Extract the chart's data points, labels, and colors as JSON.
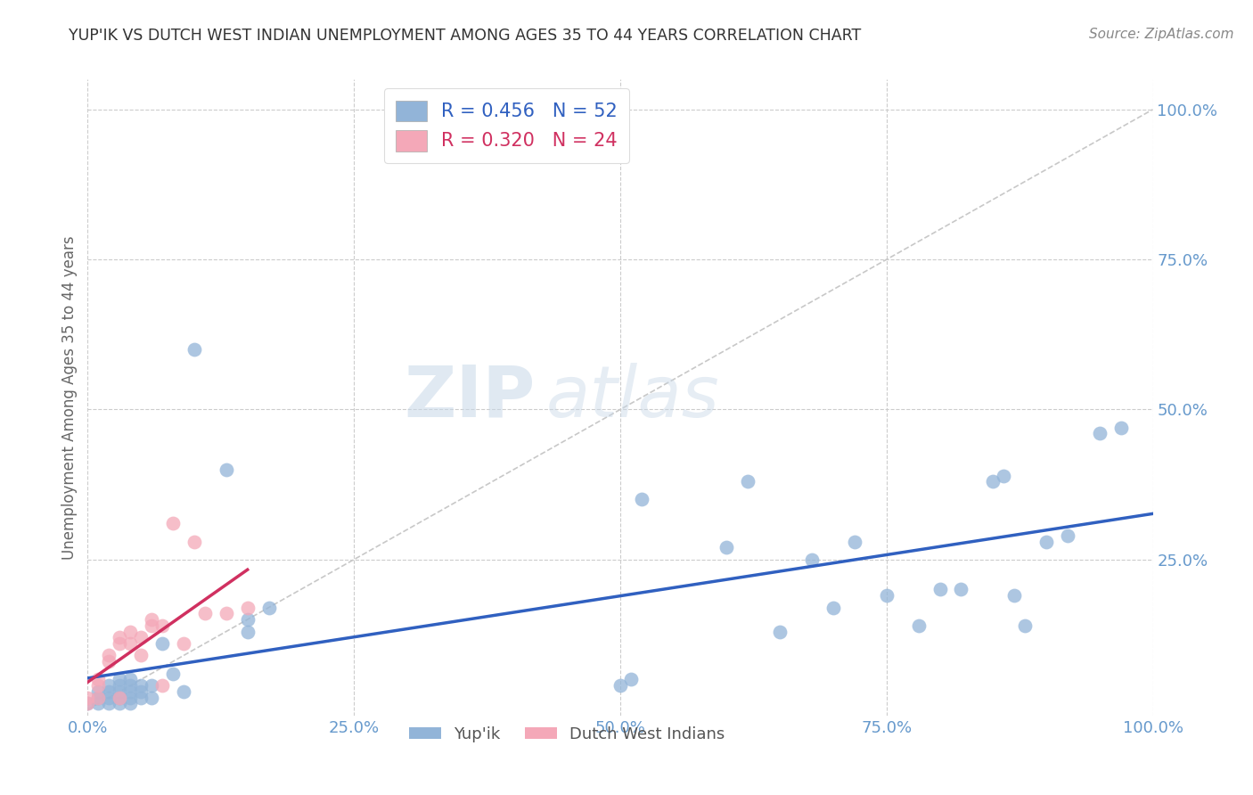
{
  "title": "YUP'IK VS DUTCH WEST INDIAN UNEMPLOYMENT AMONG AGES 35 TO 44 YEARS CORRELATION CHART",
  "source": "Source: ZipAtlas.com",
  "ylabel": "Unemployment Among Ages 35 to 44 years",
  "xlim": [
    0.0,
    1.0
  ],
  "ylim": [
    -0.01,
    1.05
  ],
  "xticks": [
    0.0,
    0.25,
    0.5,
    0.75,
    1.0
  ],
  "yticks": [
    0.25,
    0.5,
    0.75,
    1.0
  ],
  "xticklabels": [
    "0.0%",
    "25.0%",
    "50.0%",
    "75.0%",
    "100.0%"
  ],
  "yticklabels": [
    "25.0%",
    "50.0%",
    "75.0%",
    "100.0%"
  ],
  "legend_r1": "R = 0.456",
  "legend_n1": "N = 52",
  "legend_r2": "R = 0.320",
  "legend_n2": "N = 24",
  "series1_label": "Yup'ik",
  "series2_label": "Dutch West Indians",
  "color1": "#92b4d8",
  "color2": "#f4a8b8",
  "trendline1_color": "#3060c0",
  "trendline2_color": "#d03060",
  "ref_line_color": "#c8c8c8",
  "watermark_zip": "ZIP",
  "watermark_atlas": "atlas",
  "background_color": "#ffffff",
  "grid_color": "#cccccc",
  "title_color": "#333333",
  "axis_label_color": "#666666",
  "tick_color": "#6699cc",
  "series1_x": [
    0.0,
    0.01,
    0.01,
    0.01,
    0.02,
    0.02,
    0.02,
    0.02,
    0.03,
    0.03,
    0.03,
    0.03,
    0.03,
    0.04,
    0.04,
    0.04,
    0.04,
    0.04,
    0.05,
    0.05,
    0.05,
    0.06,
    0.06,
    0.07,
    0.08,
    0.09,
    0.1,
    0.13,
    0.15,
    0.15,
    0.17,
    0.5,
    0.51,
    0.52,
    0.6,
    0.62,
    0.65,
    0.68,
    0.7,
    0.72,
    0.75,
    0.78,
    0.8,
    0.82,
    0.85,
    0.86,
    0.87,
    0.88,
    0.9,
    0.92,
    0.95,
    0.97
  ],
  "series1_y": [
    0.01,
    0.01,
    0.02,
    0.03,
    0.01,
    0.02,
    0.03,
    0.04,
    0.01,
    0.02,
    0.03,
    0.04,
    0.05,
    0.01,
    0.02,
    0.03,
    0.04,
    0.05,
    0.02,
    0.03,
    0.04,
    0.02,
    0.04,
    0.11,
    0.06,
    0.03,
    0.6,
    0.4,
    0.13,
    0.15,
    0.17,
    0.04,
    0.05,
    0.35,
    0.27,
    0.38,
    0.13,
    0.25,
    0.17,
    0.28,
    0.19,
    0.14,
    0.2,
    0.2,
    0.38,
    0.39,
    0.19,
    0.14,
    0.28,
    0.29,
    0.46,
    0.47
  ],
  "series2_x": [
    0.0,
    0.0,
    0.01,
    0.01,
    0.01,
    0.02,
    0.02,
    0.03,
    0.03,
    0.03,
    0.04,
    0.04,
    0.05,
    0.05,
    0.06,
    0.06,
    0.07,
    0.07,
    0.08,
    0.09,
    0.1,
    0.11,
    0.13,
    0.15
  ],
  "series2_y": [
    0.01,
    0.02,
    0.02,
    0.04,
    0.05,
    0.08,
    0.09,
    0.02,
    0.11,
    0.12,
    0.11,
    0.13,
    0.09,
    0.12,
    0.14,
    0.15,
    0.04,
    0.14,
    0.31,
    0.11,
    0.28,
    0.16,
    0.16,
    0.17
  ]
}
